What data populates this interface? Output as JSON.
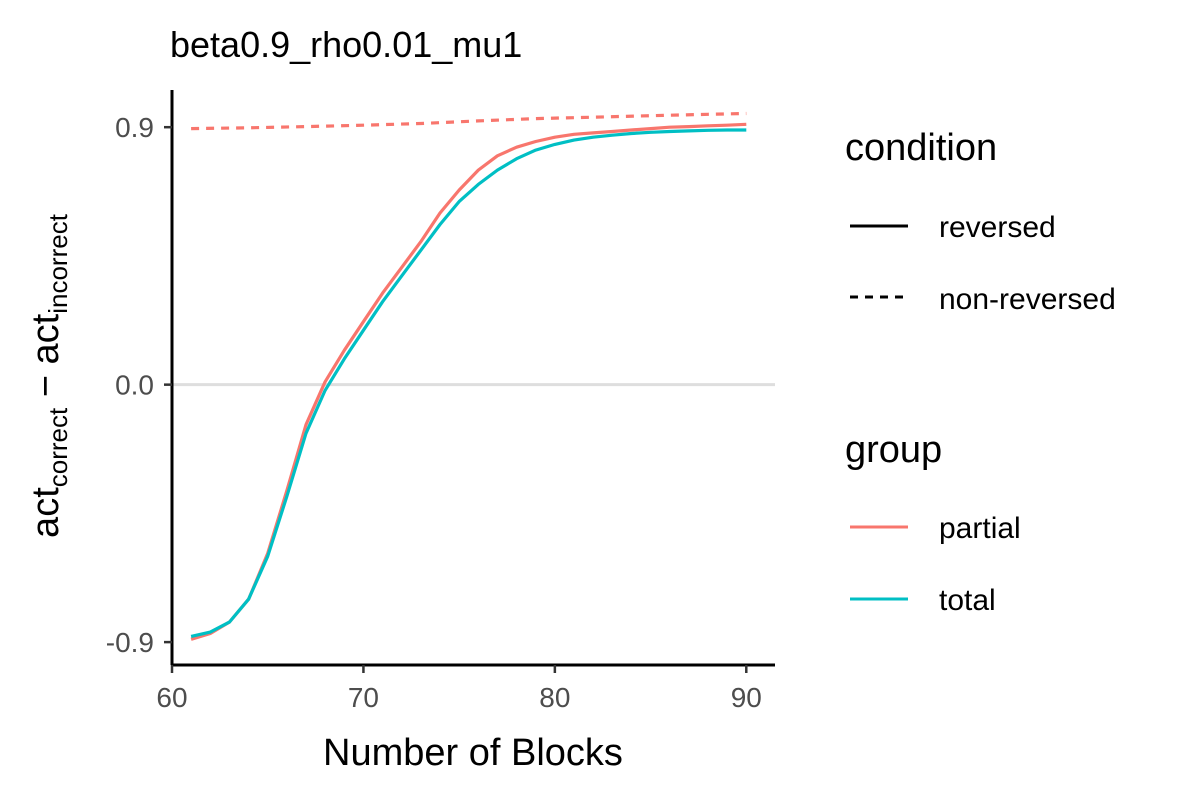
{
  "chart_data": {
    "type": "line",
    "title": "beta0.9_rho0.01_mu1",
    "xlabel": "Number of Blocks",
    "ylabel": {
      "main1": "act",
      "sub1": "correct",
      "op": " − ",
      "main2": "act",
      "sub2": "incorrect"
    },
    "xlim": [
      60,
      91.5
    ],
    "ylim": [
      -0.98,
      1.03
    ],
    "xticks": [
      60,
      70,
      80,
      90
    ],
    "yticks": [
      {
        "value": -0.9,
        "label": "-0.9"
      },
      {
        "value": 0.0,
        "label": "0.0"
      },
      {
        "value": 0.9,
        "label": "0.9"
      }
    ],
    "reference_line": 0.0,
    "grid": false,
    "colors": {
      "partial": "#F8766D",
      "total": "#00BFC4",
      "reference": "#dedede"
    },
    "series": [
      {
        "name": "partial",
        "condition": "reversed",
        "color": "#F8766D",
        "dash": "solid",
        "x": [
          61,
          62,
          63,
          64,
          65,
          66,
          67,
          68,
          69,
          70,
          71,
          72,
          73,
          74,
          75,
          76,
          77,
          78,
          79,
          80,
          81,
          82,
          83,
          84,
          85,
          86,
          87,
          88,
          89,
          90
        ],
        "y": [
          -0.89,
          -0.87,
          -0.83,
          -0.75,
          -0.59,
          -0.37,
          -0.14,
          0.01,
          0.12,
          0.22,
          0.32,
          0.41,
          0.5,
          0.6,
          0.68,
          0.75,
          0.8,
          0.83,
          0.85,
          0.865,
          0.875,
          0.88,
          0.885,
          0.89,
          0.895,
          0.9,
          0.902,
          0.905,
          0.907,
          0.91
        ]
      },
      {
        "name": "total",
        "condition": "reversed",
        "color": "#00BFC4",
        "dash": "solid",
        "x": [
          61,
          62,
          63,
          64,
          65,
          66,
          67,
          68,
          69,
          70,
          71,
          72,
          73,
          74,
          75,
          76,
          77,
          78,
          79,
          80,
          81,
          82,
          83,
          84,
          85,
          86,
          87,
          88,
          89,
          90
        ],
        "y": [
          -0.88,
          -0.865,
          -0.83,
          -0.75,
          -0.6,
          -0.39,
          -0.17,
          -0.02,
          0.09,
          0.19,
          0.29,
          0.38,
          0.47,
          0.56,
          0.64,
          0.7,
          0.75,
          0.79,
          0.82,
          0.84,
          0.855,
          0.865,
          0.872,
          0.878,
          0.882,
          0.885,
          0.887,
          0.889,
          0.89,
          0.89
        ]
      },
      {
        "name": "partial",
        "condition": "non-reversed",
        "color": "#F8766D",
        "dash": "dashed",
        "x": [
          61,
          64,
          67,
          70,
          73,
          76,
          79,
          82,
          85,
          88,
          90
        ],
        "y": [
          0.895,
          0.898,
          0.902,
          0.907,
          0.913,
          0.922,
          0.93,
          0.935,
          0.94,
          0.945,
          0.948
        ]
      }
    ],
    "legend": {
      "position": "right",
      "condition": {
        "title": "condition",
        "items": [
          {
            "label": "reversed",
            "dash": "solid"
          },
          {
            "label": "non-reversed",
            "dash": "dashed"
          }
        ]
      },
      "group": {
        "title": "group",
        "items": [
          {
            "label": "partial",
            "color": "#F8766D"
          },
          {
            "label": "total",
            "color": "#00BFC4"
          }
        ]
      }
    }
  }
}
